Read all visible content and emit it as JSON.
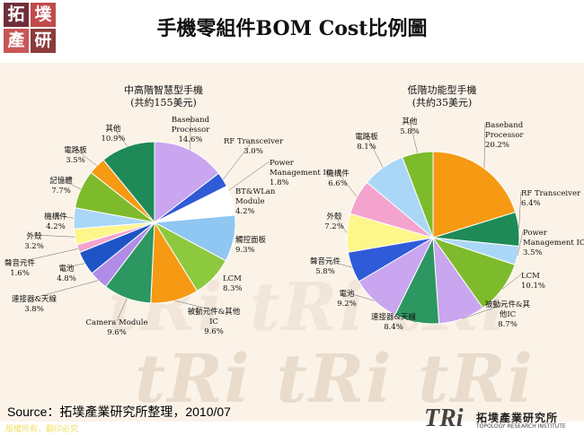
{
  "logo": {
    "char1": "拓",
    "char2": "墣",
    "char3": "產",
    "char4": "研"
  },
  "title": "手機零組件BOM Cost比例圖",
  "source": "Source：拓墣產業研究所整理，2010/07",
  "copyright": "版權所有，翻印必究",
  "tri_logo": {
    "mark": "TRi",
    "name_cn": "拓墣產業研究所",
    "name_en": "TOPOLOGY RESEARCH INSTITUTE"
  },
  "colors": {
    "purple": "#c9a6ef",
    "blue": "#2f5bd9",
    "white": "#ffffff",
    "lightblue": "#8fc6f2",
    "lightgreen": "#8dc93f",
    "orange": "#f59a12",
    "teal": "#2c9760",
    "lavender": "#b08ce6",
    "darkblue": "#1f54c6",
    "pink": "#f4a3cf",
    "yellow": "#fdf68a",
    "skyblue": "#aad7f7",
    "green": "#7dbb2c",
    "forest": "#1f8a57"
  },
  "chart_data": [
    {
      "type": "pie",
      "title": "中高階智慧型手機",
      "subtitle": "(共約155美元)",
      "slices": [
        {
          "label": [
            "Baseband",
            "Processor"
          ],
          "pct": "14.6%",
          "value": 14.6,
          "color": "#c9a6ef"
        },
        {
          "label": [
            "RF Transceiver"
          ],
          "pct": "3.0%",
          "value": 3.0,
          "color": "#2f5bd9"
        },
        {
          "label": [
            "Power",
            "Management IC"
          ],
          "pct": "1.8%",
          "value": 1.8,
          "color": "#ffffff"
        },
        {
          "label": [
            "BT&WLan",
            "Module"
          ],
          "pct": "4.2%",
          "value": 4.2,
          "color": "#ffffff"
        },
        {
          "label": [
            "觸控面板"
          ],
          "pct": "9.3%",
          "value": 9.3,
          "color": "#8fc6f2"
        },
        {
          "label": [
            "LCM"
          ],
          "pct": "8.3%",
          "value": 8.3,
          "color": "#8dc93f"
        },
        {
          "label": [
            "被動元件&其他",
            "IC"
          ],
          "pct": "9.6%",
          "value": 9.6,
          "color": "#f59a12"
        },
        {
          "label": [
            "Camera Module"
          ],
          "pct": "9.6%",
          "value": 9.6,
          "color": "#2c9760"
        },
        {
          "label": [
            "連接器&天線"
          ],
          "pct": "3.8%",
          "value": 3.8,
          "color": "#b08ce6"
        },
        {
          "label": [
            "電池"
          ],
          "pct": "4.8%",
          "value": 4.8,
          "color": "#1f54c6"
        },
        {
          "label": [
            "聲音元件"
          ],
          "pct": "1.6%",
          "value": 1.6,
          "color": "#f4a3cf"
        },
        {
          "label": [
            "外殼"
          ],
          "pct": "3.2%",
          "value": 3.2,
          "color": "#fdf68a"
        },
        {
          "label": [
            "機構件"
          ],
          "pct": "4.2%",
          "value": 4.2,
          "color": "#aad7f7"
        },
        {
          "label": [
            "記憶體"
          ],
          "pct": "7.7%",
          "value": 7.7,
          "color": "#7dbb2c"
        },
        {
          "label": [
            "電路板"
          ],
          "pct": "3.5%",
          "value": 3.5,
          "color": "#f59a12"
        },
        {
          "label": [
            "其他"
          ],
          "pct": "10.9%",
          "value": 10.9,
          "color": "#1f8a57"
        }
      ]
    },
    {
      "type": "pie",
      "title": "低階功能型手機",
      "subtitle": "(共約35美元)",
      "slices": [
        {
          "label": [
            "Baseband",
            "Processor"
          ],
          "pct": "20.2%",
          "value": 20.2,
          "color": "#f59a12"
        },
        {
          "label": [
            "RF Transceiver"
          ],
          "pct": "6.4%",
          "value": 6.4,
          "color": "#1f8a57"
        },
        {
          "label": [
            "Power",
            "Management IC"
          ],
          "pct": "3.5%",
          "value": 3.5,
          "color": "#aad7f7"
        },
        {
          "label": [
            "LCM"
          ],
          "pct": "10.1%",
          "value": 10.1,
          "color": "#7dbb2c"
        },
        {
          "label": [
            "被動元件&其",
            "他IC"
          ],
          "pct": "8.7%",
          "value": 8.7,
          "color": "#c9a6ef"
        },
        {
          "label": [
            "連接器&天線"
          ],
          "pct": "8.4%",
          "value": 8.4,
          "color": "#2c9760"
        },
        {
          "label": [
            "電池"
          ],
          "pct": "9.2%",
          "value": 9.2,
          "color": "#c9a6ef"
        },
        {
          "label": [
            "聲音元件"
          ],
          "pct": "5.8%",
          "value": 5.8,
          "color": "#2f5bd9"
        },
        {
          "label": [
            "外殼"
          ],
          "pct": "7.2%",
          "value": 7.2,
          "color": "#fdf68a"
        },
        {
          "label": [
            "機構件"
          ],
          "pct": "6.6%",
          "value": 6.6,
          "color": "#f4a3cf"
        },
        {
          "label": [
            "電路板"
          ],
          "pct": "8.1%",
          "value": 8.1,
          "color": "#aad7f7"
        },
        {
          "label": [
            "其他"
          ],
          "pct": "5.8%",
          "value": 5.8,
          "color": "#7dbb2c"
        }
      ]
    }
  ]
}
